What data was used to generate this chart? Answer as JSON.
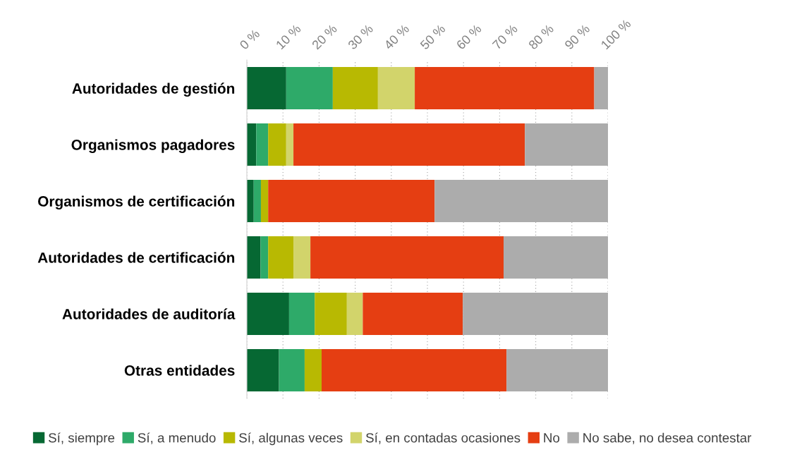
{
  "chart_data": {
    "type": "bar",
    "orientation": "horizontal",
    "stacked": true,
    "categories": [
      "Autoridades de gestión",
      "Organismos pagadores",
      "Organismos de certificación",
      "Autoridades de certificación",
      "Autoridades de auditoría",
      "Otras entidades"
    ],
    "series": [
      {
        "name": "Sí, siempre",
        "color": "#066833",
        "values": [
          10.9,
          2.6,
          1.9,
          3.8,
          11.7,
          8.9
        ]
      },
      {
        "name": "Sí, a menudo",
        "color": "#2eaa69",
        "values": [
          12.9,
          3.3,
          2.0,
          2.1,
          7.1,
          7.1
        ]
      },
      {
        "name": "Sí, algunas veces",
        "color": "#b8b902",
        "values": [
          12.5,
          5.0,
          2.0,
          7.0,
          8.9,
          4.7
        ]
      },
      {
        "name": "Sí, en contadas ocasiones",
        "color": "#d2d46b",
        "values": [
          10.2,
          2.0,
          0,
          4.7,
          4.4,
          0
        ]
      },
      {
        "name": "No",
        "color": "#e53e12",
        "values": [
          49.7,
          64.1,
          46.1,
          53.5,
          27.7,
          51.2
        ]
      },
      {
        "name": "No sabe, no desea contestar",
        "color": "#acacac",
        "values": [
          3.8,
          23.0,
          48.0,
          28.9,
          40.2,
          28.1
        ]
      }
    ],
    "xlim": [
      0,
      100
    ],
    "xticks": [
      {
        "value": 0,
        "label": "0 %"
      },
      {
        "value": 10,
        "label": "10 %"
      },
      {
        "value": 20,
        "label": "20 %"
      },
      {
        "value": 30,
        "label": "30 %"
      },
      {
        "value": 40,
        "label": "40 %"
      },
      {
        "value": 50,
        "label": "50 %"
      },
      {
        "value": 60,
        "label": "60 %"
      },
      {
        "value": 70,
        "label": "70 %"
      },
      {
        "value": 80,
        "label": "80 %"
      },
      {
        "value": 90,
        "label": "90 %"
      },
      {
        "value": 100,
        "label": "100 %"
      }
    ],
    "grid": "x",
    "legend": "bottom"
  }
}
